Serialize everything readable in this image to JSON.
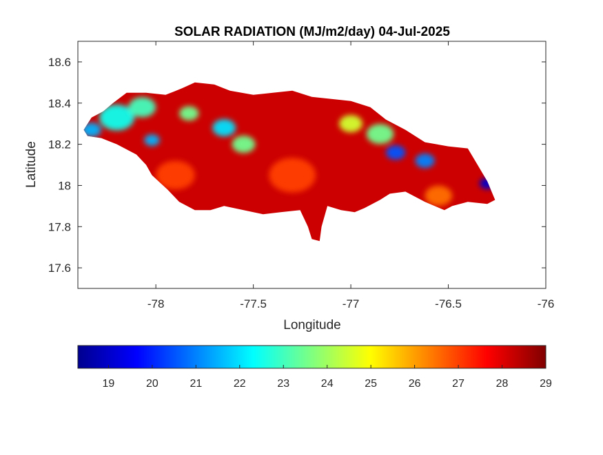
{
  "chart_data": {
    "type": "heatmap",
    "title": "SOLAR RADIATION (MJ/m2/day) 04-Jul-2025",
    "xlabel": "Longitude",
    "ylabel": "Latitude",
    "xlim": [
      -78.4,
      -76
    ],
    "ylim": [
      17.5,
      18.7
    ],
    "xticks": [
      -78,
      -77.5,
      -77,
      -76.5,
      -76
    ],
    "yticks": [
      17.6,
      17.8,
      18,
      18.2,
      18.4,
      18.6
    ],
    "grid": false,
    "colormap": "jet",
    "colorbar": {
      "orientation": "horizontal",
      "location": "bottom",
      "range": [
        18.3,
        29
      ],
      "ticks": [
        19,
        20,
        21,
        22,
        23,
        24,
        25,
        26,
        27,
        28,
        29
      ]
    },
    "field_summary": {
      "typical_range": [
        26,
        29
      ],
      "min_approx": 19,
      "max_approx": 29
    },
    "map_outline": [
      [
        -78.37,
        18.27
      ],
      [
        -78.33,
        18.33
      ],
      [
        -78.27,
        18.36
      ],
      [
        -78.22,
        18.4
      ],
      [
        -78.15,
        18.45
      ],
      [
        -78.05,
        18.45
      ],
      [
        -77.95,
        18.44
      ],
      [
        -77.87,
        18.47
      ],
      [
        -77.8,
        18.5
      ],
      [
        -77.7,
        18.49
      ],
      [
        -77.62,
        18.46
      ],
      [
        -77.5,
        18.44
      ],
      [
        -77.4,
        18.45
      ],
      [
        -77.3,
        18.46
      ],
      [
        -77.2,
        18.43
      ],
      [
        -77.1,
        18.42
      ],
      [
        -77.0,
        18.41
      ],
      [
        -76.9,
        18.38
      ],
      [
        -76.82,
        18.32
      ],
      [
        -76.72,
        18.27
      ],
      [
        -76.62,
        18.21
      ],
      [
        -76.5,
        18.19
      ],
      [
        -76.4,
        18.18
      ],
      [
        -76.35,
        18.1
      ],
      [
        -76.3,
        18.02
      ],
      [
        -76.26,
        17.93
      ],
      [
        -76.3,
        17.91
      ],
      [
        -76.4,
        17.92
      ],
      [
        -76.48,
        17.9
      ],
      [
        -76.52,
        17.88
      ],
      [
        -76.62,
        17.92
      ],
      [
        -76.72,
        17.97
      ],
      [
        -76.8,
        17.96
      ],
      [
        -76.85,
        17.93
      ],
      [
        -76.93,
        17.89
      ],
      [
        -76.98,
        17.87
      ],
      [
        -77.05,
        17.88
      ],
      [
        -77.12,
        17.9
      ],
      [
        -77.15,
        17.8
      ],
      [
        -77.16,
        17.73
      ],
      [
        -77.2,
        17.74
      ],
      [
        -77.22,
        17.8
      ],
      [
        -77.26,
        17.88
      ],
      [
        -77.36,
        17.87
      ],
      [
        -77.45,
        17.86
      ],
      [
        -77.55,
        17.88
      ],
      [
        -77.65,
        17.9
      ],
      [
        -77.72,
        17.88
      ],
      [
        -77.8,
        17.88
      ],
      [
        -77.88,
        17.92
      ],
      [
        -77.94,
        17.98
      ],
      [
        -78.02,
        18.05
      ],
      [
        -78.05,
        18.1
      ],
      [
        -78.1,
        18.15
      ],
      [
        -78.2,
        18.2
      ],
      [
        -78.28,
        18.23
      ],
      [
        -78.35,
        18.24
      ]
    ],
    "field_features": [
      {
        "lon": -78.33,
        "lat": 18.27,
        "value": 21.5,
        "spread": 0.05
      },
      {
        "lon": -78.2,
        "lat": 18.33,
        "value": 22.5,
        "spread": 0.09
      },
      {
        "lon": -78.07,
        "lat": 18.38,
        "value": 23.0,
        "spread": 0.07
      },
      {
        "lon": -78.02,
        "lat": 18.22,
        "value": 21.5,
        "spread": 0.04
      },
      {
        "lon": -77.83,
        "lat": 18.35,
        "value": 23.5,
        "spread": 0.05
      },
      {
        "lon": -77.65,
        "lat": 18.28,
        "value": 22.0,
        "spread": 0.06
      },
      {
        "lon": -77.55,
        "lat": 18.2,
        "value": 23.5,
        "spread": 0.06
      },
      {
        "lon": -77.0,
        "lat": 18.3,
        "value": 24.5,
        "spread": 0.06
      },
      {
        "lon": -76.85,
        "lat": 18.25,
        "value": 23.5,
        "spread": 0.07
      },
      {
        "lon": -76.77,
        "lat": 18.16,
        "value": 20.5,
        "spread": 0.05
      },
      {
        "lon": -76.62,
        "lat": 18.12,
        "value": 21.0,
        "spread": 0.05
      },
      {
        "lon": -76.3,
        "lat": 18.01,
        "value": 19.0,
        "spread": 0.04
      },
      {
        "lon": -77.3,
        "lat": 18.05,
        "value": 27.0,
        "spread": 0.12
      },
      {
        "lon": -77.9,
        "lat": 18.05,
        "value": 27.0,
        "spread": 0.1
      },
      {
        "lon": -76.55,
        "lat": 17.95,
        "value": 26.5,
        "spread": 0.07
      }
    ]
  }
}
